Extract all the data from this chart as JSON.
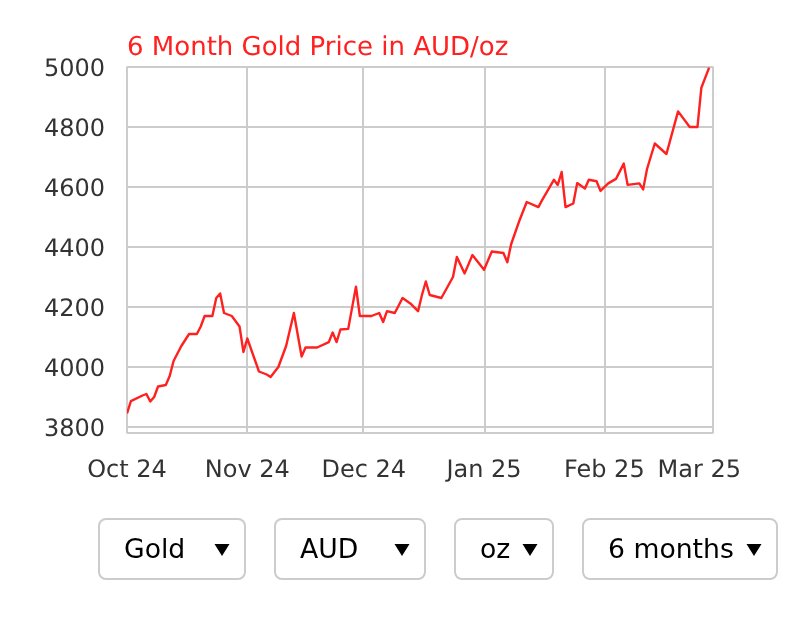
{
  "chart_data": {
    "type": "line",
    "title": "6 Month Gold Price in AUD/oz",
    "x": [
      "2024-10-01",
      "2024-10-02",
      "2024-10-05",
      "2024-10-06",
      "2024-10-07",
      "2024-10-08",
      "2024-10-09",
      "2024-10-11",
      "2024-10-12",
      "2024-10-13",
      "2024-10-15",
      "2024-10-17",
      "2024-10-19",
      "2024-10-20",
      "2024-10-21",
      "2024-10-23",
      "2024-10-24",
      "2024-10-25",
      "2024-10-26",
      "2024-10-28",
      "2024-10-30",
      "2024-10-31",
      "2024-11-01",
      "2024-11-04",
      "2024-11-06",
      "2024-11-07",
      "2024-11-09",
      "2024-11-11",
      "2024-11-13",
      "2024-11-15",
      "2024-11-16",
      "2024-11-19",
      "2024-11-22",
      "2024-11-23",
      "2024-11-24",
      "2024-11-25",
      "2024-11-27",
      "2024-11-29",
      "2024-11-30",
      "2024-12-03",
      "2024-12-05",
      "2024-12-06",
      "2024-12-07",
      "2024-12-09",
      "2024-12-11",
      "2024-12-13",
      "2024-12-15",
      "2024-12-16",
      "2024-12-17",
      "2024-12-18",
      "2024-12-21",
      "2024-12-24",
      "2024-12-25",
      "2024-12-27",
      "2024-12-29",
      "2025-01-01",
      "2025-01-03",
      "2025-01-06",
      "2025-01-07",
      "2025-01-08",
      "2025-01-10",
      "2025-01-12",
      "2025-01-15",
      "2025-01-16",
      "2025-01-19",
      "2025-01-20",
      "2025-01-21",
      "2025-01-22",
      "2025-01-24",
      "2025-01-25",
      "2025-01-27",
      "2025-01-28",
      "2025-01-30",
      "2025-01-31",
      "2025-02-02",
      "2025-02-04",
      "2025-02-06",
      "2025-02-07",
      "2025-02-10",
      "2025-02-11",
      "2025-02-12",
      "2025-02-14",
      "2025-02-17",
      "2025-02-20",
      "2025-02-23",
      "2025-02-25",
      "2025-02-26",
      "2025-02-28"
    ],
    "series": [
      {
        "color": "#ff2020",
        "values": [
          3845,
          3886,
          3905,
          3910,
          3885,
          3900,
          3935,
          3940,
          3970,
          4020,
          4070,
          4110,
          4110,
          4135,
          4170,
          4170,
          4230,
          4245,
          4180,
          4170,
          4135,
          4050,
          4095,
          3985,
          3975,
          3967,
          4000,
          4070,
          4180,
          4035,
          4065,
          4065,
          4083,
          4115,
          4083,
          4125,
          4127,
          4268,
          4170,
          4170,
          4180,
          4150,
          4186,
          4180,
          4230,
          4212,
          4186,
          4240,
          4285,
          4240,
          4230,
          4300,
          4367,
          4312,
          4373,
          4324,
          4385,
          4380,
          4349,
          4410,
          4484,
          4550,
          4533,
          4557,
          4624,
          4607,
          4650,
          4533,
          4545,
          4613,
          4595,
          4624,
          4619,
          4587,
          4612,
          4627,
          4678,
          4607,
          4612,
          4592,
          4660,
          4745,
          4710,
          4852,
          4800,
          4800,
          4931,
          4998
        ]
      }
    ],
    "xlim": [
      "2024-10-01",
      "2025-03-01"
    ],
    "xticks": [
      {
        "value": "2024-10-01",
        "label": "Oct 24"
      },
      {
        "value": "2024-11-01",
        "label": "Nov 24"
      },
      {
        "value": "2024-12-01",
        "label": "Dec 24"
      },
      {
        "value": "2025-01-01",
        "label": "Jan 25"
      },
      {
        "value": "2025-02-01",
        "label": "Feb 25"
      },
      {
        "value": "2025-03-01",
        "label": "Mar 25"
      }
    ],
    "ylim": [
      3780,
      5000
    ],
    "yticks": [
      3800,
      4000,
      4200,
      4400,
      4600,
      4800,
      5000
    ],
    "grid": true,
    "annotations": [
      "Gold",
      "AUD",
      "oz",
      "6 months"
    ]
  }
}
